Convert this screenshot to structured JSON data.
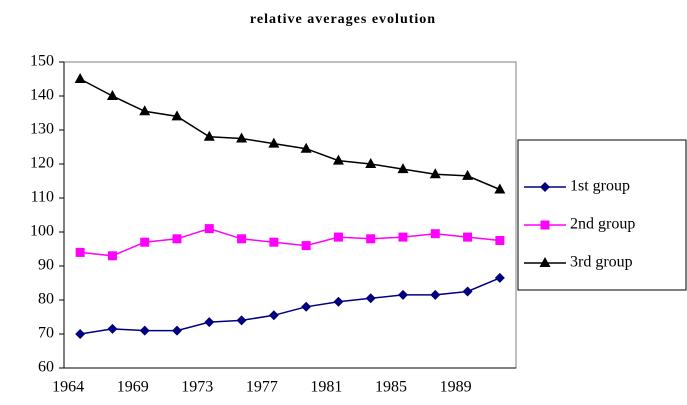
{
  "chart_data": {
    "type": "line",
    "title": "relative averages evolution",
    "categories": [
      "1964",
      null,
      "1969",
      null,
      "1973",
      null,
      "1977",
      null,
      "1981",
      null,
      "1985",
      null,
      "1989",
      null
    ],
    "series": [
      {
        "name": "1st group",
        "color": "#000080",
        "marker": "diamond",
        "values": [
          70,
          71.5,
          71,
          71,
          73.5,
          74,
          75.5,
          78,
          79.5,
          80.5,
          81.5,
          81.5,
          82.5,
          86.5
        ]
      },
      {
        "name": "2nd group",
        "color": "#ff00ff",
        "marker": "square",
        "values": [
          94,
          93,
          97,
          98,
          101,
          98,
          97,
          96,
          98.5,
          98,
          98.5,
          99.5,
          98.5,
          97.5
        ]
      },
      {
        "name": "3rd group",
        "color": "#000000",
        "marker": "triangle",
        "values": [
          145,
          140,
          135.5,
          134,
          128,
          127.5,
          126,
          124.5,
          121,
          120,
          118.5,
          117,
          116.5,
          112.5
        ]
      }
    ],
    "ylim": [
      60,
      150
    ],
    "yticks": [
      60,
      70,
      80,
      90,
      100,
      110,
      120,
      130,
      140,
      150
    ],
    "grid": false,
    "legend": "right"
  }
}
